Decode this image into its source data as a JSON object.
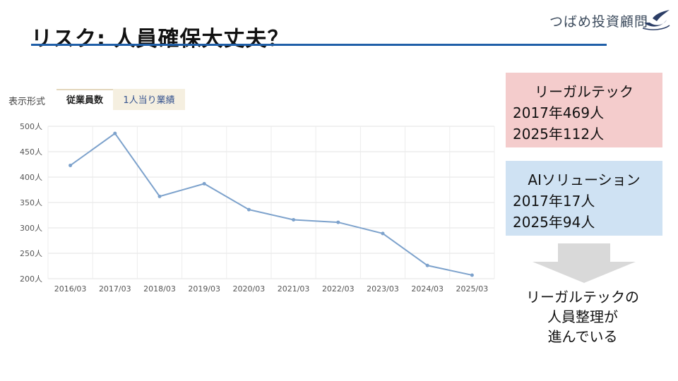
{
  "slide": {
    "title": "リスク: 人員確保大丈夫？",
    "logo_text": "つばめ投資顧問"
  },
  "view": {
    "label": "表示形式",
    "tabs": [
      "従業員数",
      "1人当り業績"
    ],
    "active_tab": 0
  },
  "colors": {
    "title_rule": "#1f5fa8",
    "line": "#7da2cc",
    "callout_pink": "#f4cccc",
    "callout_blue": "#cfe2f3",
    "arrow": "#d9d9d9"
  },
  "chart_data": {
    "type": "line",
    "categories": [
      "2016/03",
      "2017/03",
      "2018/03",
      "2019/03",
      "2020/03",
      "2021/03",
      "2022/03",
      "2023/03",
      "2024/03",
      "2025/03"
    ],
    "values": [
      423,
      486,
      362,
      387,
      336,
      316,
      311,
      289,
      226,
      207
    ],
    "yticks": [
      "500人",
      "450人",
      "400人",
      "350人",
      "300人",
      "250人",
      "200人"
    ],
    "ylim": [
      200,
      500
    ],
    "grid": true
  },
  "callouts": {
    "legaltech": {
      "title": "リーガルテック",
      "line1": "2017年469人",
      "line2": "2025年112人"
    },
    "ai": {
      "title": "AIソリューション",
      "line1": "2017年17人",
      "line2": "2025年94人"
    }
  },
  "conclusion": {
    "lines": [
      "リーガルテックの",
      "人員整理が",
      "進んでいる"
    ]
  }
}
